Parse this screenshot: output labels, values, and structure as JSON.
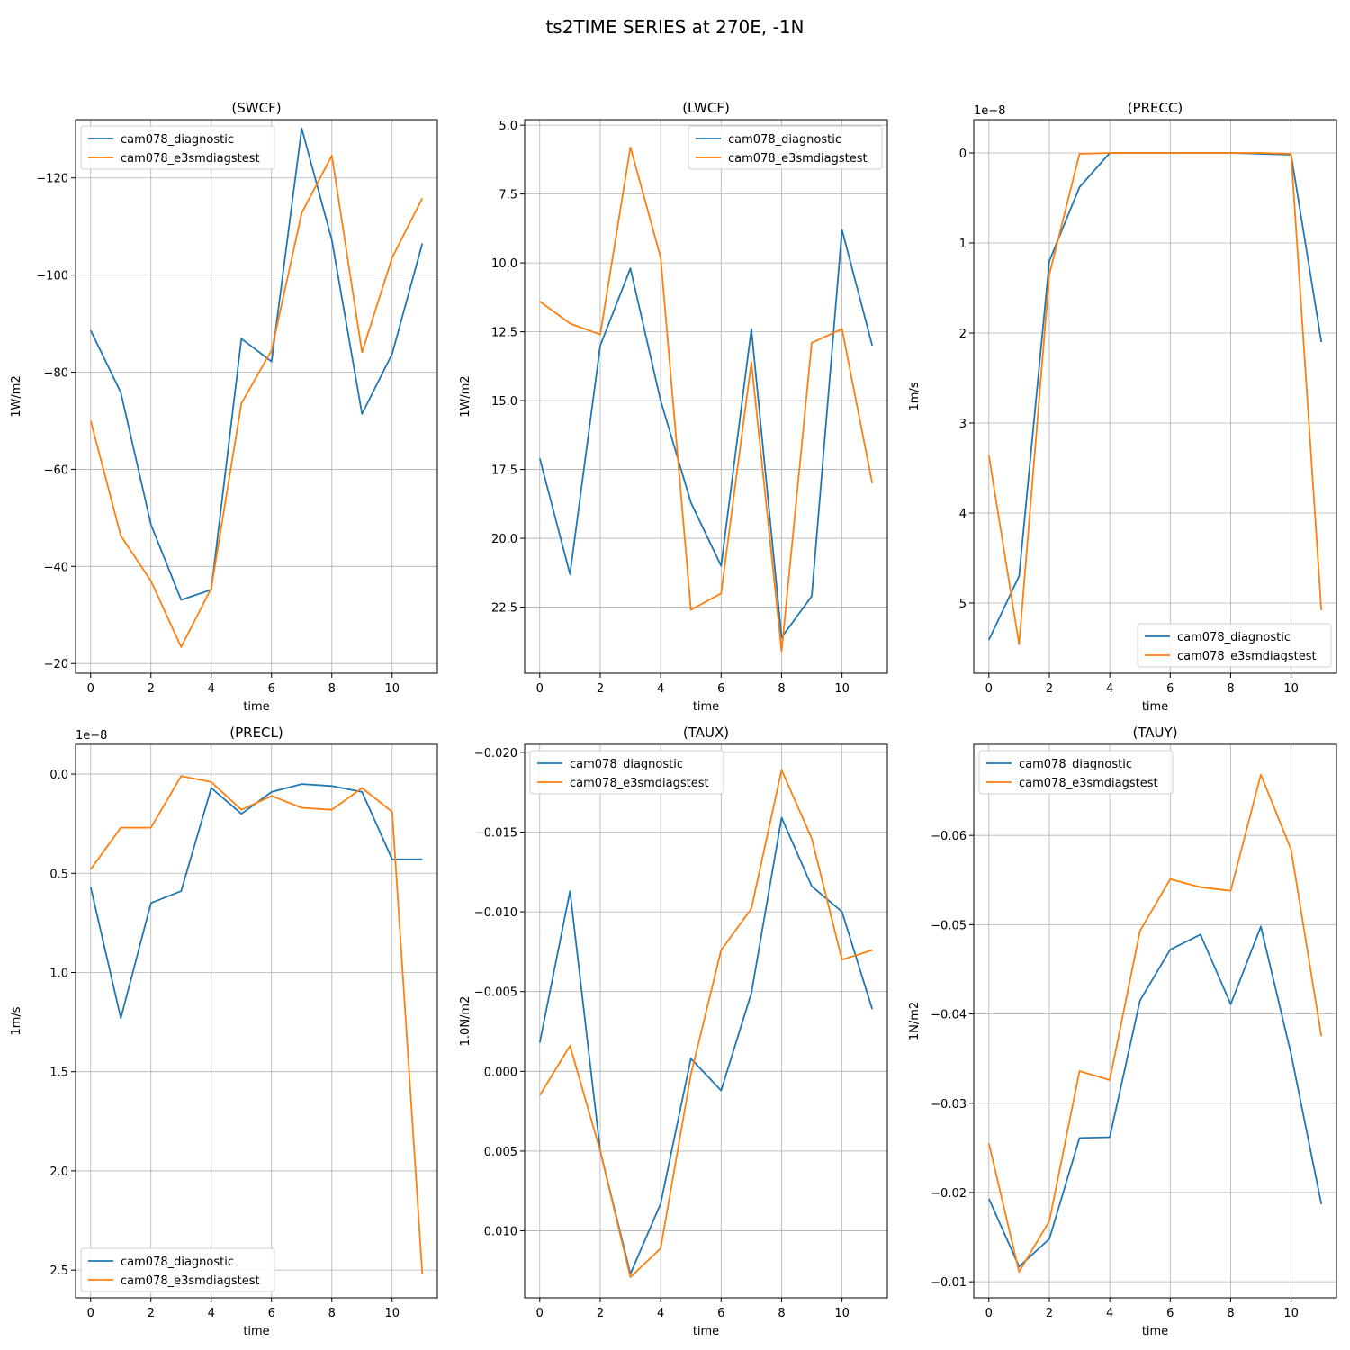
{
  "figure": {
    "title": "ts2TIME SERIES at 270E, -1N"
  },
  "colors": {
    "series1": "#1f77b4",
    "series2": "#ff7f0e",
    "grid": "#b0b0b0",
    "axis": "#000000"
  },
  "chart_data": [
    {
      "type": "line",
      "title": "(SWCF)",
      "xlabel": "time",
      "ylabel": "1W/m2",
      "y_inverted": true,
      "ylim": [
        -18,
        -132
      ],
      "xlim": [
        -0.5,
        11.5
      ],
      "x": [
        0,
        1,
        2,
        3,
        4,
        5,
        6,
        7,
        8,
        9,
        10,
        11
      ],
      "xticks": [
        0,
        2,
        4,
        6,
        8,
        10
      ],
      "yticks": [
        -20,
        -40,
        -60,
        -80,
        -100,
        -120
      ],
      "yticklabels": [
        "−20",
        "−40",
        "−60",
        "−80",
        "−100",
        "−120"
      ],
      "offset_text": "",
      "grid": true,
      "legend": "top-left",
      "series": [
        {
          "name": "cam078_diagnostic",
          "values": [
            -88.6,
            -75.8,
            -48.6,
            -33.1,
            -35.2,
            -86.9,
            -82.2,
            -130.2,
            -107.2,
            -71.4,
            -83.8,
            -106.5
          ]
        },
        {
          "name": "cam078_e3smdiagstest",
          "values": [
            -70.0,
            -46.3,
            -37.0,
            -23.4,
            -35.5,
            -73.6,
            -84.5,
            -112.8,
            -124.6,
            -84.1,
            -103.6,
            -115.8
          ]
        }
      ]
    },
    {
      "type": "line",
      "title": "(LWCF)",
      "xlabel": "time",
      "ylabel": "1W/m2",
      "y_inverted": true,
      "ylim": [
        24.9,
        4.8
      ],
      "xlim": [
        -0.5,
        11.5
      ],
      "x": [
        0,
        1,
        2,
        3,
        4,
        5,
        6,
        7,
        8,
        9,
        10,
        11
      ],
      "xticks": [
        0,
        2,
        4,
        6,
        8,
        10
      ],
      "yticks": [
        5.0,
        7.5,
        10.0,
        12.5,
        15.0,
        17.5,
        20.0,
        22.5
      ],
      "yticklabels": [
        "5.0",
        "7.5",
        "10.0",
        "12.5",
        "15.0",
        "17.5",
        "20.0",
        "22.5"
      ],
      "offset_text": "",
      "grid": true,
      "legend": "top-right",
      "series": [
        {
          "name": "cam078_diagnostic",
          "values": [
            17.1,
            21.3,
            13.0,
            10.2,
            15.0,
            18.7,
            21.0,
            12.4,
            23.6,
            22.1,
            8.8,
            13.0
          ]
        },
        {
          "name": "cam078_e3smdiagstest",
          "values": [
            11.4,
            12.2,
            12.6,
            5.8,
            9.8,
            22.6,
            22.0,
            13.6,
            24.1,
            12.9,
            12.4,
            18.0
          ]
        }
      ]
    },
    {
      "type": "line",
      "title": "(PRECC)",
      "xlabel": "time",
      "ylabel": "1m/s",
      "y_inverted": true,
      "ylim": [
        5.78,
        -0.37
      ],
      "xlim": [
        -0.5,
        11.5
      ],
      "x": [
        0,
        1,
        2,
        3,
        4,
        5,
        6,
        7,
        8,
        9,
        10,
        11
      ],
      "xticks": [
        0,
        2,
        4,
        6,
        8,
        10
      ],
      "yticks": [
        0,
        1,
        2,
        3,
        4,
        5
      ],
      "yticklabels": [
        "0",
        "1",
        "2",
        "3",
        "4",
        "5"
      ],
      "offset_text": "1e−8",
      "grid": true,
      "legend": "bottom-right",
      "series": [
        {
          "name": "cam078_diagnostic",
          "values": [
            5.41,
            4.7,
            1.2,
            0.38,
            0.0,
            0.0,
            0.0,
            0.0,
            0.0,
            0.01,
            0.02,
            2.1
          ]
        },
        {
          "name": "cam078_e3smdiagstest",
          "values": [
            3.36,
            5.46,
            1.35,
            0.01,
            0.0,
            0.0,
            0.0,
            0.0,
            0.0,
            0.0,
            0.01,
            5.08
          ]
        }
      ]
    },
    {
      "type": "line",
      "title": "(PRECL)",
      "xlabel": "time",
      "ylabel": "1m/s",
      "y_inverted": true,
      "ylim": [
        2.64,
        -0.15
      ],
      "xlim": [
        -0.5,
        11.5
      ],
      "x": [
        0,
        1,
        2,
        3,
        4,
        5,
        6,
        7,
        8,
        9,
        10,
        11
      ],
      "xticks": [
        0,
        2,
        4,
        6,
        8,
        10
      ],
      "yticks": [
        0.0,
        0.5,
        1.0,
        1.5,
        2.0,
        2.5
      ],
      "yticklabels": [
        "0.0",
        "0.5",
        "1.0",
        "1.5",
        "2.0",
        "2.5"
      ],
      "offset_text": "1e−8",
      "grid": true,
      "legend": "bottom-left",
      "series": [
        {
          "name": "cam078_diagnostic",
          "values": [
            0.57,
            1.23,
            0.65,
            0.59,
            0.07,
            0.2,
            0.09,
            0.05,
            0.06,
            0.09,
            0.43,
            0.43
          ]
        },
        {
          "name": "cam078_e3smdiagstest",
          "values": [
            0.48,
            0.27,
            0.27,
            0.01,
            0.04,
            0.18,
            0.11,
            0.17,
            0.18,
            0.07,
            0.19,
            2.52
          ]
        }
      ]
    },
    {
      "type": "line",
      "title": "(TAUX)",
      "xlabel": "time",
      "ylabel": "1.0N/m2",
      "y_inverted": true,
      "ylim": [
        0.0142,
        -0.0205
      ],
      "xlim": [
        -0.5,
        11.5
      ],
      "x": [
        0,
        1,
        2,
        3,
        4,
        5,
        6,
        7,
        8,
        9,
        10,
        11
      ],
      "xticks": [
        0,
        2,
        4,
        6,
        8,
        10
      ],
      "yticks": [
        -0.02,
        -0.015,
        -0.01,
        -0.005,
        0.0,
        0.005,
        0.01
      ],
      "yticklabels": [
        "−0.020",
        "−0.015",
        "−0.010",
        "−0.005",
        "0.000",
        "0.005",
        "0.010"
      ],
      "offset_text": "",
      "grid": true,
      "legend": "top-left",
      "series": [
        {
          "name": "cam078_diagnostic",
          "values": [
            -0.0018,
            -0.0113,
            0.005,
            0.0127,
            0.0083,
            -0.0008,
            0.0012,
            -0.0049,
            -0.0159,
            -0.0116,
            -0.01,
            -0.0039
          ]
        },
        {
          "name": "cam078_e3smdiagstest",
          "values": [
            0.0015,
            -0.0016,
            0.005,
            0.0129,
            0.0111,
            0.0002,
            -0.0076,
            -0.0102,
            -0.0189,
            -0.0146,
            -0.007,
            -0.0076
          ]
        }
      ]
    },
    {
      "type": "line",
      "title": "(TAUY)",
      "xlabel": "time",
      "ylabel": "1N/m2",
      "y_inverted": true,
      "ylim": [
        -0.0082,
        -0.0702
      ],
      "xlim": [
        -0.5,
        11.5
      ],
      "x": [
        0,
        1,
        2,
        3,
        4,
        5,
        6,
        7,
        8,
        9,
        10,
        11
      ],
      "xticks": [
        0,
        2,
        4,
        6,
        8,
        10
      ],
      "yticks": [
        -0.01,
        -0.02,
        -0.03,
        -0.04,
        -0.05,
        -0.06
      ],
      "yticklabels": [
        "−0.01",
        "−0.02",
        "−0.03",
        "−0.04",
        "−0.05",
        "−0.06"
      ],
      "offset_text": "",
      "grid": true,
      "legend": "top-left",
      "series": [
        {
          "name": "cam078_diagnostic",
          "values": [
            -0.0193,
            -0.0117,
            -0.0148,
            -0.0261,
            -0.0262,
            -0.0415,
            -0.0472,
            -0.0489,
            -0.0411,
            -0.0498,
            -0.0355,
            -0.0187
          ]
        },
        {
          "name": "cam078_e3smdiagstest",
          "values": [
            -0.0255,
            -0.0111,
            -0.0168,
            -0.0336,
            -0.0326,
            -0.0493,
            -0.0551,
            -0.0542,
            -0.0538,
            -0.0668,
            -0.0584,
            -0.0375
          ]
        }
      ]
    }
  ]
}
